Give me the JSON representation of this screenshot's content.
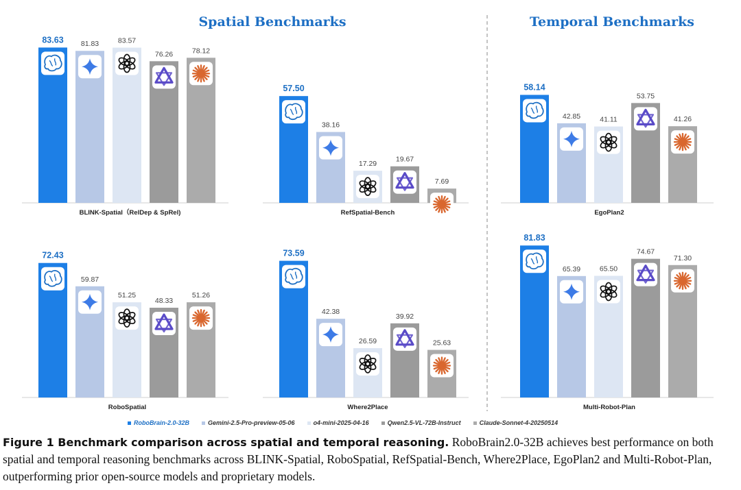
{
  "colors": {
    "title": "#1d6fc4",
    "series": [
      "#1d7fe6",
      "#b7c8e6",
      "#dde6f3",
      "#9b9b9b",
      "#ababab"
    ],
    "icon_brain": "#1d6fc4",
    "icon_gemini": "#3d7be6",
    "icon_openai": "#111111",
    "icon_qwen": "#5a4bc8",
    "icon_claude": "#d9672f"
  },
  "sections": {
    "spatial": "Spatial Benchmarks",
    "temporal": "Temporal Benchmarks"
  },
  "chart_data": {
    "type": "bar",
    "series": [
      {
        "name": "RoboBrain-2.0-32B",
        "icon": "brain-icon"
      },
      {
        "name": "Gemini-2.5-Pro-preview-05-06",
        "icon": "gemini-icon"
      },
      {
        "name": "o4-mini-2025-04-16",
        "icon": "openai-icon"
      },
      {
        "name": "Qwen2.5-VL-72B-Instruct",
        "icon": "qwen-icon"
      },
      {
        "name": "Claude-Sonnet-4-20250514",
        "icon": "claude-icon"
      }
    ],
    "legend_placement": "bottom",
    "panels": [
      {
        "benchmark": "BLINK-Spatial（RelDep & SpRel)",
        "values": [
          83.63,
          81.83,
          83.57,
          76.26,
          78.12
        ],
        "labels": [
          "83.63",
          "81.83",
          "83.57",
          "76.26",
          "78.12"
        ]
      },
      {
        "benchmark": "RefSpatial-Bench",
        "values": [
          57.5,
          38.16,
          17.29,
          19.67,
          7.69
        ],
        "labels": [
          "57.50",
          "38.16",
          "17.29",
          "19.67",
          "7.69"
        ]
      },
      {
        "benchmark": "EgoPlan2",
        "values": [
          58.14,
          42.85,
          41.11,
          53.75,
          41.26
        ],
        "labels": [
          "58.14",
          "42.85",
          "41.11",
          "53.75",
          "41.26"
        ]
      },
      {
        "benchmark": "RoboSpatial",
        "values": [
          72.43,
          59.87,
          51.25,
          48.33,
          51.26
        ],
        "labels": [
          "72.43",
          "59.87",
          "51.25",
          "48.33",
          "51.26"
        ]
      },
      {
        "benchmark": "Where2Place",
        "values": [
          73.59,
          42.38,
          26.59,
          39.92,
          25.63
        ],
        "labels": [
          "73.59",
          "42.38",
          "26.59",
          "39.92",
          "25.63"
        ]
      },
      {
        "benchmark": "Multi-Robot-Plan",
        "values": [
          81.83,
          65.39,
          65.5,
          74.67,
          71.3
        ],
        "labels": [
          "81.83",
          "65.39",
          "65.50",
          "74.67",
          "71.30"
        ]
      }
    ]
  },
  "caption": {
    "label": "Figure 1  Benchmark comparison across spatial and temporal reasoning.",
    "text": " RoboBrain2.0-32B achieves best performance on both spatial and temporal reasoning benchmarks across BLINK-Spatial, RoboSpatial, RefSpatial-Bench, Where2Place, EgoPlan2 and Multi-Robot-Plan, outperforming prior open-source models and proprietary models."
  }
}
